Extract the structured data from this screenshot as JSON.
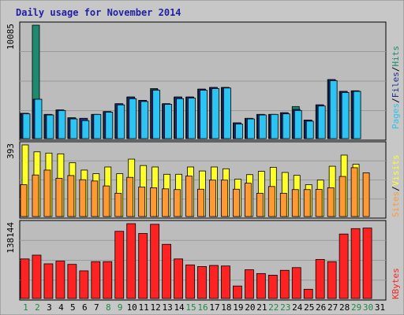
{
  "title": "Daily usage for November 2014",
  "colors": {
    "frame_bg": "#c7c7c7",
    "panel_bg": "#bcbcbc",
    "grid": "#9a9a9a",
    "hits": "#1f8a6e",
    "files": "#1f2f8f",
    "pages": "#2cc4f2",
    "visits": "#ffff2a",
    "sites": "#ff9933",
    "kbytes": "#ff2222",
    "weekday_label": "#000000",
    "weekend_label": "#228844",
    "side_sep": "#000000"
  },
  "side_labels": {
    "top": [
      "Pages",
      "/",
      "Files",
      "/",
      "Hits"
    ],
    "middle": [
      "Sites",
      "/",
      "Visits"
    ],
    "bottom": [
      "KBytes"
    ]
  },
  "chart_data": {
    "type": "bar",
    "title": "Daily usage for November 2014",
    "days": [
      "1",
      "2",
      "3",
      "4",
      "5",
      "6",
      "7",
      "8",
      "9",
      "10",
      "11",
      "12",
      "13",
      "14",
      "15",
      "16",
      "17",
      "18",
      "19",
      "20",
      "21",
      "22",
      "23",
      "24",
      "25",
      "26",
      "27",
      "28",
      "29",
      "30",
      "31"
    ],
    "weekend_days": [
      1,
      2,
      8,
      9,
      15,
      16,
      22,
      23,
      29,
      30
    ],
    "panels": [
      {
        "name": "top",
        "ymax_label": "10085",
        "ymax": 10085,
        "series": [
          {
            "name": "Hits",
            "values": [
              2250,
              10085,
              2150,
              2550,
              1850,
              1800,
              2150,
              2400,
              3100,
              3700,
              3400,
              4450,
              3100,
              3700,
              3700,
              4400,
              4550,
              4550,
              1400,
              1800,
              2150,
              2150,
              2300,
              2850,
              1650,
              3000,
              5250,
              4200,
              4250,
              0,
              0
            ]
          },
          {
            "name": "Files",
            "values": [
              2250,
              3500,
              2150,
              2550,
              1850,
              1800,
              2150,
              2400,
              3100,
              3700,
              3400,
              4350,
              3100,
              3700,
              3700,
              4400,
              4550,
              4550,
              1400,
              1800,
              2150,
              2150,
              2300,
              2600,
              1650,
              3000,
              5250,
              4200,
              4250,
              0,
              0
            ]
          },
          {
            "name": "Pages",
            "values": [
              2200,
              3500,
              2100,
              2500,
              1750,
              1600,
              2150,
              2350,
              3000,
              3550,
              3300,
              4300,
              3050,
              3550,
              3600,
              4300,
              4450,
              4500,
              1300,
              1750,
              2100,
              2150,
              2200,
              2500,
              1550,
              2900,
              5150,
              4100,
              4200,
              0,
              0
            ]
          }
        ]
      },
      {
        "name": "middle",
        "ymax_label": "393",
        "ymax": 393,
        "series": [
          {
            "name": "Visits",
            "values": [
              393,
              355,
              348,
              344,
              295,
              255,
              235,
              272,
              235,
              315,
              280,
              272,
              232,
              232,
              272,
              250,
              272,
              262,
              205,
              230,
              248,
              270,
              242,
              226,
              175,
              200,
              276,
              337,
              287,
              0,
              0
            ]
          },
          {
            "name": "Sites",
            "values": [
              175,
              228,
              255,
              210,
              225,
              202,
              195,
              168,
              128,
              215,
              162,
              158,
              152,
              148,
              222,
              150,
              200,
              200,
              150,
              183,
              128,
              165,
              128,
              148,
              148,
              149,
              158,
              220,
              268,
              240,
              0
            ]
          }
        ]
      },
      {
        "name": "bottom",
        "ymax_label": "138144",
        "ymax": 138144,
        "series": [
          {
            "name": "KBytes",
            "values": [
              73000,
              80000,
              64000,
              69000,
              63000,
              51000,
              68000,
              68000,
              124000,
              138144,
              120000,
              137000,
              100000,
              73000,
              62000,
              59000,
              61000,
              60000,
              23000,
              53000,
              46000,
              43000,
              52000,
              57000,
              17000,
              72000,
              68000,
              119000,
              129000,
              130000,
              0
            ]
          }
        ]
      }
    ]
  }
}
